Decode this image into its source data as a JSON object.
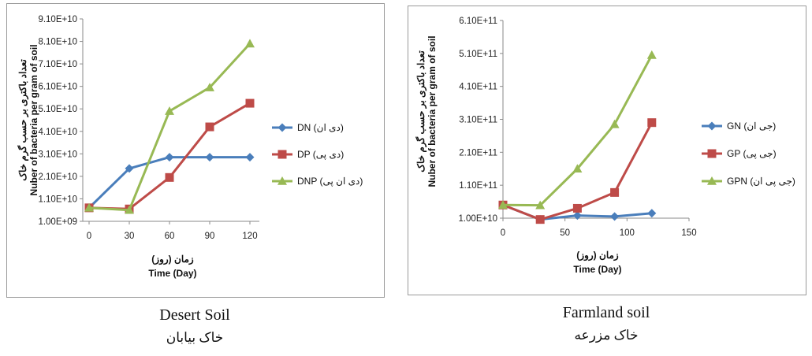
{
  "captions": {
    "left_en": "Desert Soil",
    "left_fa": "خاک بیابان",
    "right_en": "Farmland soil",
    "right_fa": "خاک مزرعه"
  },
  "chart_data": [
    {
      "type": "line",
      "x": [
        0,
        30,
        60,
        90,
        120
      ],
      "series": [
        {
          "name": "DN (دی ان)",
          "color": "#4a7ebb",
          "marker": "diamond",
          "values": [
            7000000000.0,
            24500000000.0,
            29500000000.0,
            29500000000.0,
            29500000000.0
          ]
        },
        {
          "name": "DP (دی پی)",
          "color": "#be4b48",
          "marker": "square",
          "values": [
            7000000000.0,
            6500000000.0,
            20500000000.0,
            43000000000.0,
            53500000000.0
          ]
        },
        {
          "name": "DNP (دی ان پی)",
          "color": "#98b954",
          "marker": "triangle",
          "values": [
            7000000000.0,
            6000000000.0,
            50000000000.0,
            60500000000.0,
            80000000000.0
          ]
        }
      ],
      "yticks": [
        "9.10E+10",
        "8.10E+10",
        "7.10E+10",
        "6.10E+10",
        "5.10E+10",
        "4.10E+10",
        "3.10E+10",
        "2.10E+10",
        "1.10E+10",
        "1.00E+09"
      ],
      "xticks": [
        "0",
        "30",
        "60",
        "90",
        "120"
      ],
      "xlabel_fa": "زمان (روز)",
      "xlabel_en": "Time (Day)",
      "ylabel_fa": "تعداد باکتری بر حسب گرم خاک",
      "ylabel_en": "Nuber of bacteria per gram of soil",
      "xlim": [
        0,
        120
      ],
      "ylim": [
        1000000000.0,
        91000000000.0
      ],
      "x_axis": "categorical",
      "grid": false,
      "legend": "right"
    },
    {
      "type": "line",
      "x": [
        0,
        30,
        60,
        90,
        120
      ],
      "series": [
        {
          "name": "GN (جی ان)",
          "color": "#4a7ebb",
          "marker": "diamond",
          "values": [
            50000000000.0,
            6000000000.0,
            18000000000.0,
            15000000000.0,
            25000000000.0
          ]
        },
        {
          "name": "GP (جی پی)",
          "color": "#be4b48",
          "marker": "square",
          "values": [
            50000000000.0,
            6000000000.0,
            40000000000.0,
            88000000000.0,
            300000000000.0
          ]
        },
        {
          "name": "GPN (جی پی ان)",
          "color": "#98b954",
          "marker": "triangle",
          "values": [
            50000000000.0,
            49000000000.0,
            160000000000.0,
            295000000000.0,
            505000000000.0
          ]
        }
      ],
      "yticks": [
        "6.10E+11",
        "5.10E+11",
        "4.10E+11",
        "3.10E+11",
        "2.10E+11",
        "1.10E+11",
        "1.00E+10"
      ],
      "xticks": [
        "0",
        "50",
        "100",
        "150"
      ],
      "xlabel_fa": "زمان (روز)",
      "xlabel_en": "Time (Day)",
      "ylabel_fa": "تعداد باکتری بر حسب گرم خاک",
      "ylabel_en": "Nuber of bacteria per gram of soil",
      "xlim": [
        0,
        150
      ],
      "ylim": [
        10000000000.0,
        610000000000.0
      ],
      "grid": false,
      "legend": "right"
    }
  ]
}
